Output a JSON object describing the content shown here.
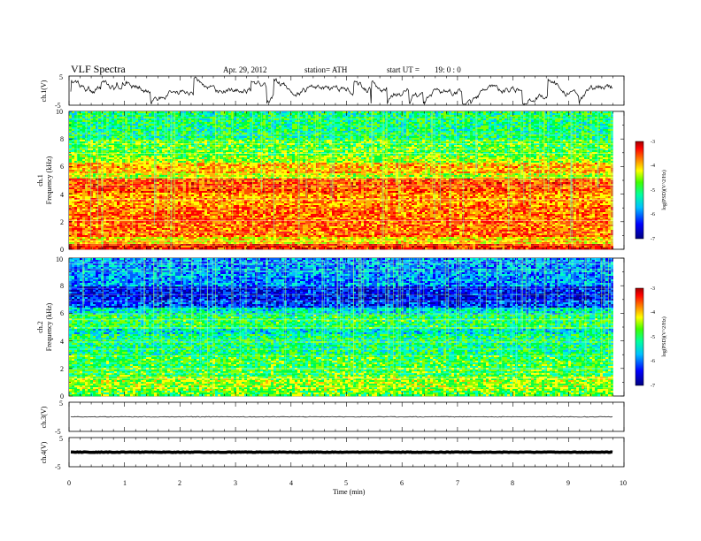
{
  "header": {
    "title": "VLF  Spectra",
    "date": "Apr. 29,  2012",
    "station": "station= ATH",
    "start_label": "start  UT  =",
    "start_time": "19: 0  : 0"
  },
  "colors": {
    "scale": [
      "#0000a0",
      "#0000ff",
      "#0060ff",
      "#00c0ff",
      "#00ffc0",
      "#00ff40",
      "#80ff00",
      "#ffff00",
      "#ffb000",
      "#ff5000",
      "#ff0000",
      "#b00000"
    ]
  },
  "chart_data": [
    {
      "type": "line",
      "name": "ch1-waveform",
      "ylabel": "ch.1(V)",
      "yticks": [
        "5",
        "-5"
      ],
      "ylim": [
        -5,
        5
      ],
      "xlim": [
        0,
        10
      ],
      "x_end": 9.8
    },
    {
      "type": "heatmap",
      "name": "ch1-spectrogram",
      "ylabel": "ch.1\nFrequency  (kHz)",
      "ylabel_channel": "ch.1",
      "ylabel_freq": "Frequency  (kHz)",
      "yticks": [
        "0",
        "2",
        "4",
        "6",
        "8",
        "10"
      ],
      "ylim": [
        0,
        10
      ],
      "xlim": [
        0,
        10
      ],
      "x_end": 9.8,
      "colorbar": {
        "label": "log(PSD)(V^2/Hz)",
        "ticks": [
          "-3",
          "-4",
          "-5",
          "-6",
          "-7"
        ],
        "range": [
          -7,
          -3
        ]
      },
      "bands_khz_logpsd": [
        [
          0.0,
          0.5,
          -3.6
        ],
        [
          0.5,
          1.0,
          -4.4
        ],
        [
          1.0,
          3.2,
          -3.9
        ],
        [
          3.2,
          4.2,
          -4.1
        ],
        [
          4.2,
          5.2,
          -3.8
        ],
        [
          5.2,
          5.6,
          -4.6
        ],
        [
          5.6,
          6.4,
          -4.2
        ],
        [
          6.4,
          6.8,
          -4.8
        ],
        [
          6.8,
          8.0,
          -5.0
        ],
        [
          8.0,
          10.0,
          -5.3
        ]
      ]
    },
    {
      "type": "heatmap",
      "name": "ch2-spectrogram",
      "ylabel": "ch.2\nFrequency  (kHz)",
      "ylabel_channel": "ch.2",
      "ylabel_freq": "Frequency  (kHz)",
      "yticks": [
        "0",
        "2",
        "4",
        "6",
        "8",
        "10"
      ],
      "ylim": [
        0,
        10
      ],
      "xlim": [
        0,
        10
      ],
      "x_end": 9.8,
      "colorbar": {
        "label": "log(PSD)(V^2/Hz)",
        "ticks": [
          "-3",
          "-4",
          "-5",
          "-6",
          "-7"
        ],
        "range": [
          -7,
          -3
        ]
      },
      "bands_khz_logpsd": [
        [
          0.0,
          0.5,
          -5.0
        ],
        [
          0.5,
          1.5,
          -4.8
        ],
        [
          1.5,
          3.0,
          -5.1
        ],
        [
          3.0,
          4.5,
          -5.3
        ],
        [
          4.5,
          5.0,
          -5.6
        ],
        [
          5.0,
          6.0,
          -5.2
        ],
        [
          6.0,
          6.5,
          -5.6
        ],
        [
          6.5,
          7.0,
          -6.3
        ],
        [
          7.0,
          8.0,
          -6.5
        ],
        [
          8.0,
          10.0,
          -6.0
        ]
      ]
    },
    {
      "type": "line",
      "name": "ch3-waveform",
      "ylabel": "ch.3(V)",
      "yticks": [
        "5",
        "-5"
      ],
      "ylim": [
        -5,
        5
      ],
      "xlim": [
        0,
        10
      ],
      "x_end": 9.8,
      "level_v": 0
    },
    {
      "type": "line",
      "name": "ch4-waveform",
      "ylabel": "ch.4(V)",
      "yticks": [
        "5",
        "-5"
      ],
      "ylim": [
        -5,
        5
      ],
      "xlim": [
        0,
        10
      ],
      "x_end": 9.8,
      "level_v": 0
    }
  ],
  "xaxis": {
    "label": "Time  (min)",
    "ticks": [
      "0",
      "1",
      "2",
      "3",
      "4",
      "5",
      "6",
      "7",
      "8",
      "9",
      "10"
    ]
  }
}
